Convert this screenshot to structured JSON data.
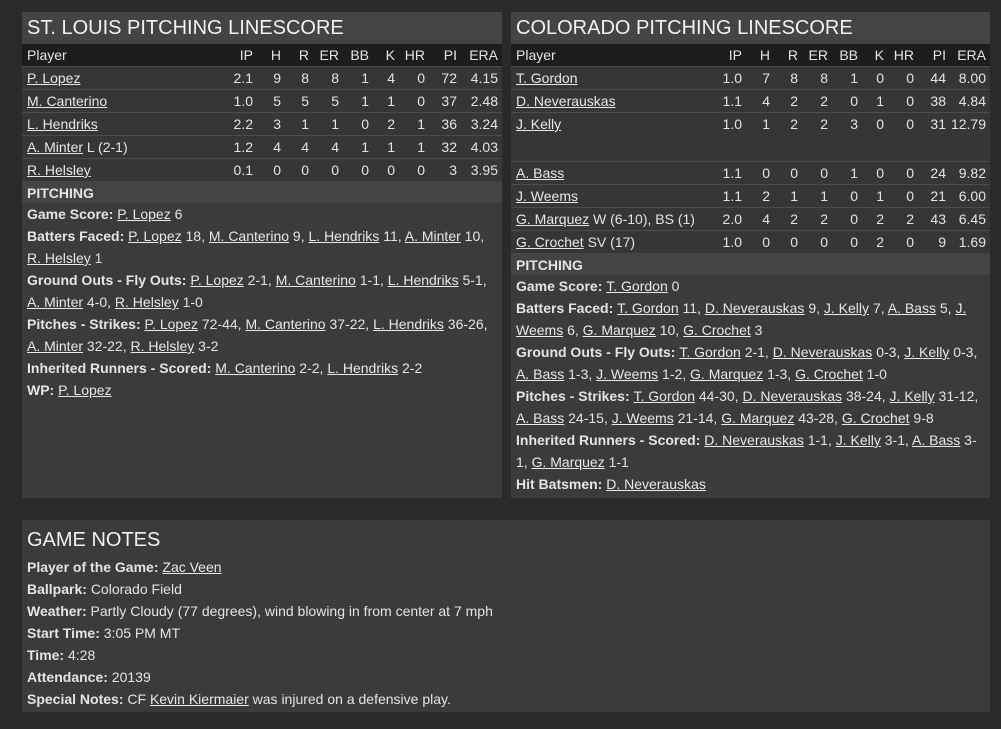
{
  "columns": [
    "Player",
    "IP",
    "H",
    "R",
    "ER",
    "BB",
    "K",
    "HR",
    "PI",
    "ERA"
  ],
  "left": {
    "title": "ST. LOUIS PITCHING LINESCORE",
    "rows": [
      {
        "name": "P. Lopez",
        "suffix": "",
        "stats": [
          "2.1",
          "9",
          "8",
          "8",
          "1",
          "4",
          "0",
          "72",
          "4.15"
        ]
      },
      {
        "name": "M. Canterino",
        "suffix": "",
        "stats": [
          "1.0",
          "5",
          "5",
          "5",
          "1",
          "1",
          "0",
          "37",
          "2.48"
        ]
      },
      {
        "name": "L. Hendriks",
        "suffix": "",
        "stats": [
          "2.2",
          "3",
          "1",
          "1",
          "0",
          "2",
          "1",
          "36",
          "3.24"
        ]
      },
      {
        "name": "A. Minter",
        "suffix": " L (2-1)",
        "stats": [
          "1.2",
          "4",
          "4",
          "4",
          "1",
          "1",
          "1",
          "32",
          "4.03"
        ]
      },
      {
        "name": "R. Helsley",
        "suffix": "",
        "stats": [
          "0.1",
          "0",
          "0",
          "0",
          "0",
          "0",
          "0",
          "3",
          "3.95"
        ]
      }
    ],
    "section": "PITCHING",
    "notes": [
      {
        "label": "Game Score: ",
        "parts": [
          {
            "link": "P. Lopez",
            "text": " 6"
          }
        ]
      },
      {
        "label": "Batters Faced: ",
        "parts": [
          {
            "link": "P. Lopez",
            "text": " 18, "
          },
          {
            "link": "M. Canterino",
            "text": " 9, "
          },
          {
            "link": "L. Hendriks",
            "text": " 11, "
          },
          {
            "link": "A. Minter",
            "text": " 10, "
          },
          {
            "link": "R. Helsley",
            "text": " 1"
          }
        ]
      },
      {
        "label": "Ground Outs - Fly Outs: ",
        "parts": [
          {
            "link": "P. Lopez",
            "text": " 2-1, "
          },
          {
            "link": "M. Canterino",
            "text": " 1-1, "
          },
          {
            "link": "L. Hendriks",
            "text": " 5-1, "
          },
          {
            "link": "A. Minter",
            "text": " 4-0, "
          },
          {
            "link": "R. Helsley",
            "text": " 1-0"
          }
        ]
      },
      {
        "label": "Pitches - Strikes: ",
        "parts": [
          {
            "link": "P. Lopez",
            "text": " 72-44, "
          },
          {
            "link": "M. Canterino",
            "text": " 37-22, "
          },
          {
            "link": "L. Hendriks",
            "text": " 36-26, "
          },
          {
            "link": "A. Minter",
            "text": " 32-22, "
          },
          {
            "link": "R. Helsley",
            "text": " 3-2"
          }
        ]
      },
      {
        "label": "Inherited Runners - Scored: ",
        "parts": [
          {
            "link": "M. Canterino",
            "text": " 2-2, "
          },
          {
            "link": "L. Hendriks",
            "text": " 2-2"
          }
        ]
      },
      {
        "label": "WP: ",
        "parts": [
          {
            "link": "P. Lopez",
            "text": ""
          }
        ]
      }
    ]
  },
  "right": {
    "title": "COLORADO PITCHING LINESCORE",
    "rows": [
      {
        "name": "T. Gordon",
        "suffix": "",
        "stats": [
          "1.0",
          "7",
          "8",
          "8",
          "1",
          "0",
          "0",
          "44",
          "8.00"
        ]
      },
      {
        "name": "D. Neverauskas",
        "suffix": "",
        "stats": [
          "1.1",
          "4",
          "2",
          "2",
          "0",
          "1",
          "0",
          "38",
          "4.84"
        ]
      },
      {
        "name": "J. Kelly",
        "suffix": "",
        "tall": true,
        "stats": [
          "1.0",
          "1",
          "2",
          "2",
          "3",
          "0",
          "0",
          "31",
          "12.79"
        ]
      },
      {
        "name": "A. Bass",
        "suffix": "",
        "stats": [
          "1.1",
          "0",
          "0",
          "0",
          "1",
          "0",
          "0",
          "24",
          "9.82"
        ]
      },
      {
        "name": "J. Weems",
        "suffix": "",
        "stats": [
          "1.1",
          "2",
          "1",
          "1",
          "0",
          "1",
          "0",
          "21",
          "6.00"
        ]
      },
      {
        "name": "G. Marquez",
        "suffix": " W (6-10), BS (1)",
        "stats": [
          "2.0",
          "4",
          "2",
          "2",
          "0",
          "2",
          "2",
          "43",
          "6.45"
        ]
      },
      {
        "name": "G. Crochet",
        "suffix": " SV (17)",
        "stats": [
          "1.0",
          "0",
          "0",
          "0",
          "0",
          "2",
          "0",
          "9",
          "1.69"
        ]
      }
    ],
    "section": "PITCHING",
    "notes": [
      {
        "label": "Game Score: ",
        "parts": [
          {
            "link": "T. Gordon",
            "text": " 0"
          }
        ]
      },
      {
        "label": "Batters Faced: ",
        "parts": [
          {
            "link": "T. Gordon",
            "text": " 11, "
          },
          {
            "link": "D. Neverauskas",
            "text": " 9, "
          },
          {
            "link": "J. Kelly",
            "text": " 7, "
          },
          {
            "link": "A. Bass",
            "text": " 5, "
          },
          {
            "link": "J. Weems",
            "text": " 6, "
          },
          {
            "link": "G. Marquez",
            "text": " 10, "
          },
          {
            "link": "G. Crochet",
            "text": " 3"
          }
        ]
      },
      {
        "label": "Ground Outs - Fly Outs: ",
        "parts": [
          {
            "link": "T. Gordon",
            "text": " 2-1, "
          },
          {
            "link": "D. Neverauskas",
            "text": " 0-3, "
          },
          {
            "link": "J. Kelly",
            "text": " 0-3, "
          },
          {
            "link": "A. Bass",
            "text": " 1-3, "
          },
          {
            "link": "J. Weems",
            "text": " 1-2, "
          },
          {
            "link": "G. Marquez",
            "text": " 1-3, "
          },
          {
            "link": "G. Crochet",
            "text": " 1-0"
          }
        ]
      },
      {
        "label": "Pitches - Strikes: ",
        "parts": [
          {
            "link": "T. Gordon",
            "text": " 44-30, "
          },
          {
            "link": "D. Neverauskas",
            "text": " 38-24, "
          },
          {
            "link": "J. Kelly",
            "text": " 31-12, "
          },
          {
            "link": "A. Bass",
            "text": " 24-15, "
          },
          {
            "link": "J. Weems",
            "text": " 21-14, "
          },
          {
            "link": "G. Marquez",
            "text": " 43-28, "
          },
          {
            "link": "G. Crochet",
            "text": " 9-8"
          }
        ]
      },
      {
        "label": "Inherited Runners - Scored: ",
        "parts": [
          {
            "link": "D. Neverauskas",
            "text": " 1-1, "
          },
          {
            "link": "J. Kelly",
            "text": " 3-1, "
          },
          {
            "link": "A. Bass",
            "text": " 3-1, "
          },
          {
            "link": "G. Marquez",
            "text": " 1-1"
          }
        ]
      },
      {
        "label": "Hit Batsmen: ",
        "parts": [
          {
            "link": "D. Neverauskas",
            "text": ""
          }
        ]
      }
    ]
  },
  "game_notes": {
    "title": "GAME NOTES",
    "notes": [
      {
        "label": "Player of the Game: ",
        "parts": [
          {
            "link": "Zac Veen",
            "text": ""
          }
        ]
      },
      {
        "label": "Ballpark: ",
        "parts": [
          {
            "link": "",
            "text": "Colorado Field"
          }
        ]
      },
      {
        "label": "Weather: ",
        "parts": [
          {
            "link": "",
            "text": "Partly Cloudy (77 degrees), wind blowing in from center at 7 mph"
          }
        ]
      },
      {
        "label": "Start Time: ",
        "parts": [
          {
            "link": "",
            "text": "3:05 PM MT"
          }
        ]
      },
      {
        "label": "Time: ",
        "parts": [
          {
            "link": "",
            "text": "4:28"
          }
        ]
      },
      {
        "label": "Attendance: ",
        "parts": [
          {
            "link": "",
            "text": "20139"
          }
        ]
      },
      {
        "label": "Special Notes: ",
        "parts": [
          {
            "link": "",
            "text": "CF "
          },
          {
            "link": "Kevin Kiermaier",
            "text": " was injured on a defensive play."
          }
        ]
      }
    ]
  }
}
